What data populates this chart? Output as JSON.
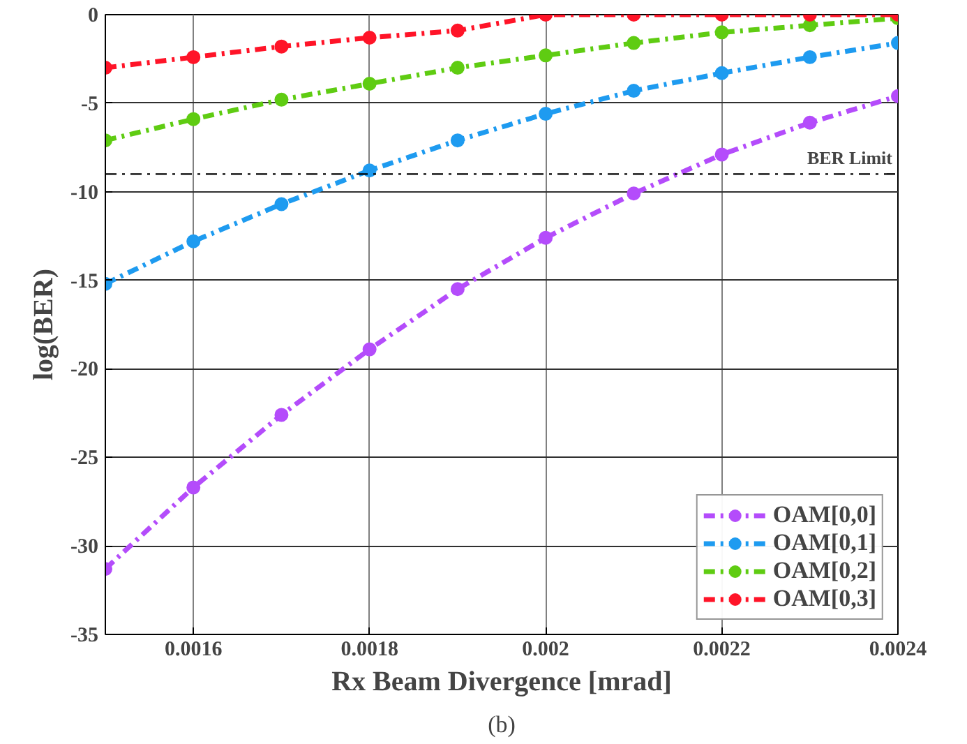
{
  "chart_data": {
    "type": "line",
    "xlabel": "Rx Beam Divergence [mrad]",
    "ylabel": "log(BER)",
    "x": [
      0.0015,
      0.0016,
      0.0017,
      0.0018,
      0.0019,
      0.002,
      0.0021,
      0.0022,
      0.0023,
      0.0024
    ],
    "series": [
      {
        "name": "OAM[0,0]",
        "color": "#b44cfb",
        "values": [
          -31.3,
          -26.7,
          -22.6,
          -18.9,
          -15.5,
          -12.6,
          -10.1,
          -7.9,
          -6.1,
          -4.6
        ]
      },
      {
        "name": "OAM[0,1]",
        "color": "#1e9bf0",
        "values": [
          -15.2,
          -12.8,
          -10.7,
          -8.8,
          -7.1,
          -5.6,
          -4.3,
          -3.3,
          -2.4,
          -1.6
        ]
      },
      {
        "name": "OAM[0,2]",
        "color": "#5fcc12",
        "values": [
          -7.1,
          -5.9,
          -4.8,
          -3.9,
          -3.0,
          -2.3,
          -1.6,
          -1.0,
          -0.6,
          -0.2
        ]
      },
      {
        "name": "OAM[0,3]",
        "color": "#ff1428",
        "values": [
          -3.0,
          -2.4,
          -1.8,
          -1.3,
          -0.9,
          0,
          0,
          0,
          0,
          0
        ]
      }
    ],
    "xlim": [
      0.0015,
      0.0024
    ],
    "ylim": [
      -35,
      0
    ],
    "xticks": [
      0.0016,
      0.0018,
      0.002,
      0.0022,
      0.0024
    ],
    "yticks": [
      -35,
      -30,
      -25,
      -20,
      -15,
      -10,
      -5,
      0
    ],
    "ref_lines": [
      {
        "axis": "y",
        "value": -9,
        "label": "BER Limit",
        "color": "#000000",
        "line_style": "dashed"
      }
    ],
    "annotations": [
      "(b)"
    ],
    "grid": true,
    "legend": "bottom right",
    "marker": "circle",
    "line_style": "dashed"
  }
}
